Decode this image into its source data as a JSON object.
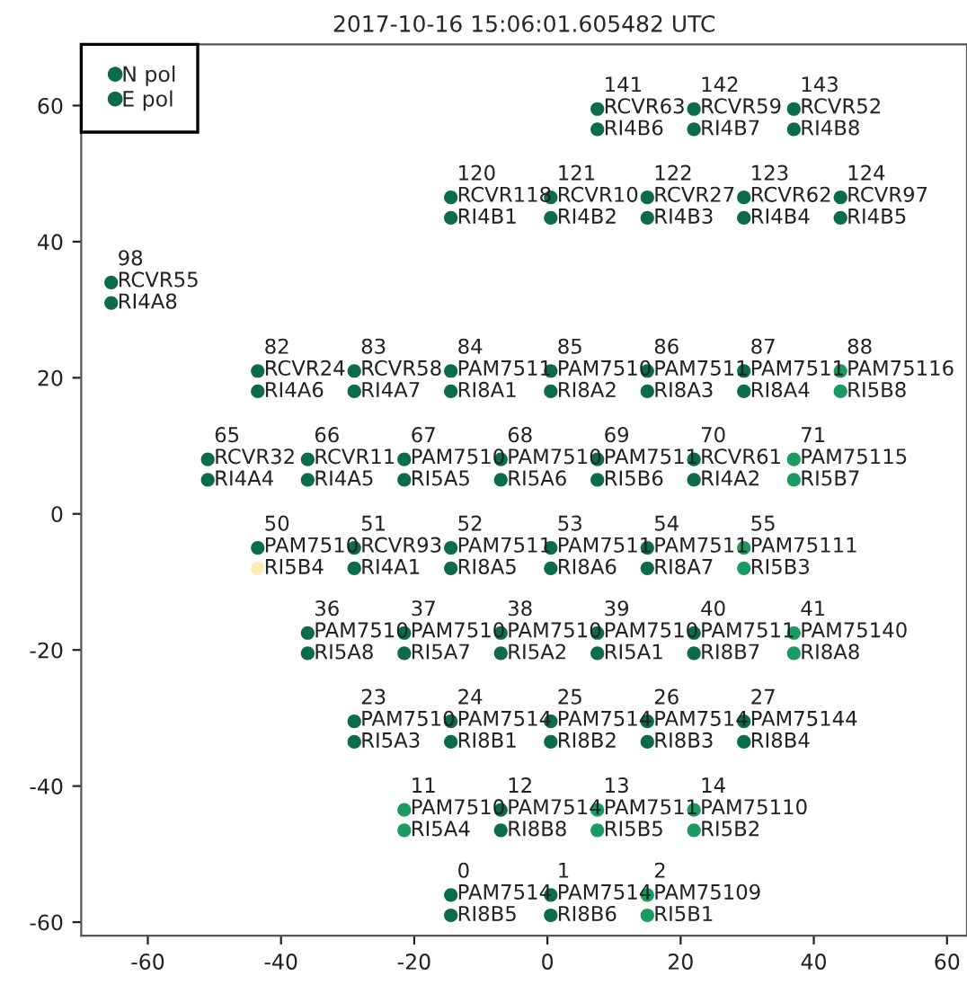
{
  "chart_data": {
    "type": "scatter",
    "title": "2017-10-16 15:06:01.605482 UTC",
    "xlim": [
      -70,
      63
    ],
    "ylim": [
      -62,
      69
    ],
    "xticks": [
      -60,
      -40,
      -20,
      0,
      20,
      40,
      60
    ],
    "yticks": [
      -60,
      -40,
      -20,
      0,
      20,
      40,
      60
    ],
    "grid": false,
    "legend": "top left",
    "marker": "circle",
    "series": [
      {
        "name": "N pol",
        "color": "#0b6b4a",
        "x": [
          -14.5,
          0.5,
          15,
          -21.5,
          -7,
          7.5,
          22,
          -29,
          -14.5,
          0.5,
          15,
          29.5,
          -36,
          -21.5,
          -7,
          7.5,
          22,
          37,
          -43.5,
          -29,
          -14.5,
          0.5,
          15,
          29.5,
          -51,
          -36,
          -21.5,
          -7,
          7.5,
          22,
          37,
          -43.5,
          -29,
          -14.5,
          0.5,
          15,
          29.5,
          44,
          -65.5,
          -14.5,
          0.5,
          15,
          29.5,
          44,
          7.5,
          22,
          37
        ],
        "values": [
          -56,
          -56,
          -56,
          -43.5,
          -43.5,
          -43.5,
          -43.5,
          -30.5,
          -30.5,
          -30.5,
          -30.5,
          -30.5,
          -17.5,
          -17.5,
          -17.5,
          -17.5,
          -17.5,
          -17.5,
          -5,
          -5,
          -5,
          -5,
          -5,
          -5,
          8,
          8,
          8,
          8,
          8,
          8,
          8,
          21,
          21,
          21,
          21,
          21,
          21,
          21,
          34,
          46.5,
          46.5,
          46.5,
          46.5,
          46.5,
          59.5,
          59.5,
          59.5
        ],
        "colors": [
          "#0b6b4a",
          "#0b6b4a",
          "#1b9a62",
          "#1b9a62",
          "#0b6b4a",
          "#1b9a62",
          "#1b9a62",
          "#0b6b4a",
          "#0b6b4a",
          "#0b6b4a",
          "#0b6b4a",
          "#0b6b4a",
          "#0b6b4a",
          "#0b6b4a",
          "#0b6b4a",
          "#0b6b4a",
          "#0b6b4a",
          "#1b9a62",
          "#0b6b4a",
          "#0b6b4a",
          "#0b6b4a",
          "#0b6b4a",
          "#0b6b4a",
          "#1b9a62",
          "#0b6b4a",
          "#0b6b4a",
          "#0b6b4a",
          "#0b6b4a",
          "#0b6b4a",
          "#0b6b4a",
          "#1b9a62",
          "#0b6b4a",
          "#0b6b4a",
          "#0b6b4a",
          "#0b6b4a",
          "#0b6b4a",
          "#0b6b4a",
          "#1b9a62",
          "#0b6b4a",
          "#0b6b4a",
          "#0b6b4a",
          "#0b6b4a",
          "#0b6b4a",
          "#0b6b4a",
          "#0b6b4a",
          "#0b6b4a",
          "#0b6b4a"
        ]
      },
      {
        "name": "E pol",
        "color": "#0b6b4a",
        "x": [
          -14.5,
          0.5,
          15,
          -21.5,
          -7,
          7.5,
          22,
          -29,
          -14.5,
          0.5,
          15,
          29.5,
          -36,
          -21.5,
          -7,
          7.5,
          22,
          37,
          -43.5,
          -29,
          -14.5,
          0.5,
          15,
          29.5,
          -51,
          -36,
          -21.5,
          -7,
          7.5,
          22,
          37,
          -43.5,
          -29,
          -14.5,
          0.5,
          15,
          29.5,
          44,
          -65.5,
          -14.5,
          0.5,
          15,
          29.5,
          44,
          7.5,
          22,
          37
        ],
        "values": [
          -59,
          -59,
          -59,
          -46.5,
          -46.5,
          -46.5,
          -46.5,
          -33.5,
          -33.5,
          -33.5,
          -33.5,
          -33.5,
          -20.5,
          -20.5,
          -20.5,
          -20.5,
          -20.5,
          -20.5,
          -8,
          -8,
          -8,
          -8,
          -8,
          -8,
          5,
          5,
          5,
          5,
          5,
          5,
          5,
          18,
          18,
          18,
          18,
          18,
          18,
          18,
          31,
          43.5,
          43.5,
          43.5,
          43.5,
          43.5,
          56.5,
          56.5,
          56.5
        ],
        "colors": [
          "#0b6b4a",
          "#0b6b4a",
          "#1b9a62",
          "#1b9a62",
          "#0b6b4a",
          "#1b9a62",
          "#1b9a62",
          "#0b6b4a",
          "#0b6b4a",
          "#0b6b4a",
          "#0b6b4a",
          "#0b6b4a",
          "#0b6b4a",
          "#0b6b4a",
          "#0b6b4a",
          "#0b6b4a",
          "#0b6b4a",
          "#1b9a62",
          "#fdecb5",
          "#0b6b4a",
          "#0b6b4a",
          "#0b6b4a",
          "#0b6b4a",
          "#1b9a62",
          "#0b6b4a",
          "#0b6b4a",
          "#0b6b4a",
          "#0b6b4a",
          "#0b6b4a",
          "#0b6b4a",
          "#1b9a62",
          "#0b6b4a",
          "#0b6b4a",
          "#0b6b4a",
          "#0b6b4a",
          "#0b6b4a",
          "#0b6b4a",
          "#1b9a62",
          "#0b6b4a",
          "#0b6b4a",
          "#0b6b4a",
          "#0b6b4a",
          "#0b6b4a",
          "#0b6b4a",
          "#0b6b4a",
          "#0b6b4a",
          "#0b6b4a"
        ]
      }
    ],
    "annotations": [
      {
        "text": "0\nPAM7514\nRI8B5",
        "x": -14.5,
        "y": -56
      },
      {
        "text": "1\nPAM7514\nRI8B6",
        "x": 0.5,
        "y": -56
      },
      {
        "text": "2\nPAM75109\nRI5B1",
        "x": 15,
        "y": -56
      },
      {
        "text": "11\nPAM7510\nRI5A4",
        "x": -21.5,
        "y": -43.5
      },
      {
        "text": "12\nPAM7514\nRI8B8",
        "x": -7,
        "y": -43.5
      },
      {
        "text": "13\nPAM7511\nRI5B5",
        "x": 7.5,
        "y": -43.5
      },
      {
        "text": "14\nPAM75110\nRI5B2",
        "x": 22,
        "y": -43.5
      },
      {
        "text": "23\nPAM7510\nRI5A3",
        "x": -29,
        "y": -30.5
      },
      {
        "text": "24\nPAM7514\nRI8B1",
        "x": -14.5,
        "y": -30.5
      },
      {
        "text": "25\nPAM7514\nRI8B2",
        "x": 0.5,
        "y": -30.5
      },
      {
        "text": "26\nPAM7514\nRI8B3",
        "x": 15,
        "y": -30.5
      },
      {
        "text": "27\nPAM75144\nRI8B4",
        "x": 29.5,
        "y": -30.5
      },
      {
        "text": "36\nPAM7510\nRI5A8",
        "x": -36,
        "y": -17.5
      },
      {
        "text": "37\nPAM7510\nRI5A7",
        "x": -21.5,
        "y": -17.5
      },
      {
        "text": "38\nPAM7510\nRI5A2",
        "x": -7,
        "y": -17.5
      },
      {
        "text": "39\nPAM7510\nRI5A1",
        "x": 7.5,
        "y": -17.5
      },
      {
        "text": "40\nPAM7511\nRI8B7",
        "x": 22,
        "y": -17.5
      },
      {
        "text": "41\nPAM75140\nRI8A8",
        "x": 37,
        "y": -17.5
      },
      {
        "text": "50\nPAM7510\nRI5B4",
        "x": -43.5,
        "y": -5
      },
      {
        "text": "51\nRCVR93\nRI4A1",
        "x": -29,
        "y": -5
      },
      {
        "text": "52\nPAM7511\nRI8A5",
        "x": -14.5,
        "y": -5
      },
      {
        "text": "53\nPAM7511\nRI8A6",
        "x": 0.5,
        "y": -5
      },
      {
        "text": "54\nPAM7511\nRI8A7",
        "x": 15,
        "y": -5
      },
      {
        "text": "55\nPAM75111\nRI5B3",
        "x": 29.5,
        "y": -5
      },
      {
        "text": "65\nRCVR32\nRI4A4",
        "x": -51,
        "y": 8
      },
      {
        "text": "66\nRCVR11\nRI4A5",
        "x": -36,
        "y": 8
      },
      {
        "text": "67\nPAM7510\nRI5A5",
        "x": -21.5,
        "y": 8
      },
      {
        "text": "68\nPAM7510\nRI5A6",
        "x": -7,
        "y": 8
      },
      {
        "text": "69\nPAM7511\nRI5B6",
        "x": 7.5,
        "y": 8
      },
      {
        "text": "70\nRCVR61\nRI4A2",
        "x": 22,
        "y": 8
      },
      {
        "text": "71\nPAM75115\nRI5B7",
        "x": 37,
        "y": 8
      },
      {
        "text": "82\nRCVR24\nRI4A6",
        "x": -43.5,
        "y": 21
      },
      {
        "text": "83\nRCVR58\nRI4A7",
        "x": -29,
        "y": 21
      },
      {
        "text": "84\nPAM7511\nRI8A1",
        "x": -14.5,
        "y": 21
      },
      {
        "text": "85\nPAM7510\nRI8A2",
        "x": 0.5,
        "y": 21
      },
      {
        "text": "86\nPAM7511\nRI8A3",
        "x": 15,
        "y": 21
      },
      {
        "text": "87\nPAM7511\nRI8A4",
        "x": 29.5,
        "y": 21
      },
      {
        "text": "88\nPAM75116\nRI5B8",
        "x": 44,
        "y": 21
      },
      {
        "text": "98\nRCVR55\nRI4A8",
        "x": -65.5,
        "y": 34
      },
      {
        "text": "120\nRCVR118\nRI4B1",
        "x": -14.5,
        "y": 46.5
      },
      {
        "text": "121\nRCVR10\nRI4B2",
        "x": 0.5,
        "y": 46.5
      },
      {
        "text": "122\nRCVR27\nRI4B3",
        "x": 15,
        "y": 46.5
      },
      {
        "text": "123\nRCVR62\nRI4B4",
        "x": 29.5,
        "y": 46.5
      },
      {
        "text": "124\nRCVR97\nRI4B5",
        "x": 44,
        "y": 46.5
      },
      {
        "text": "141\nRCVR63\nRI4B6",
        "x": 7.5,
        "y": 59.5
      },
      {
        "text": "142\nRCVR59\nRI4B7",
        "x": 22,
        "y": 59.5
      },
      {
        "text": "143\nRCVR52\nRI4B8",
        "x": 37,
        "y": 59.5
      }
    ]
  }
}
